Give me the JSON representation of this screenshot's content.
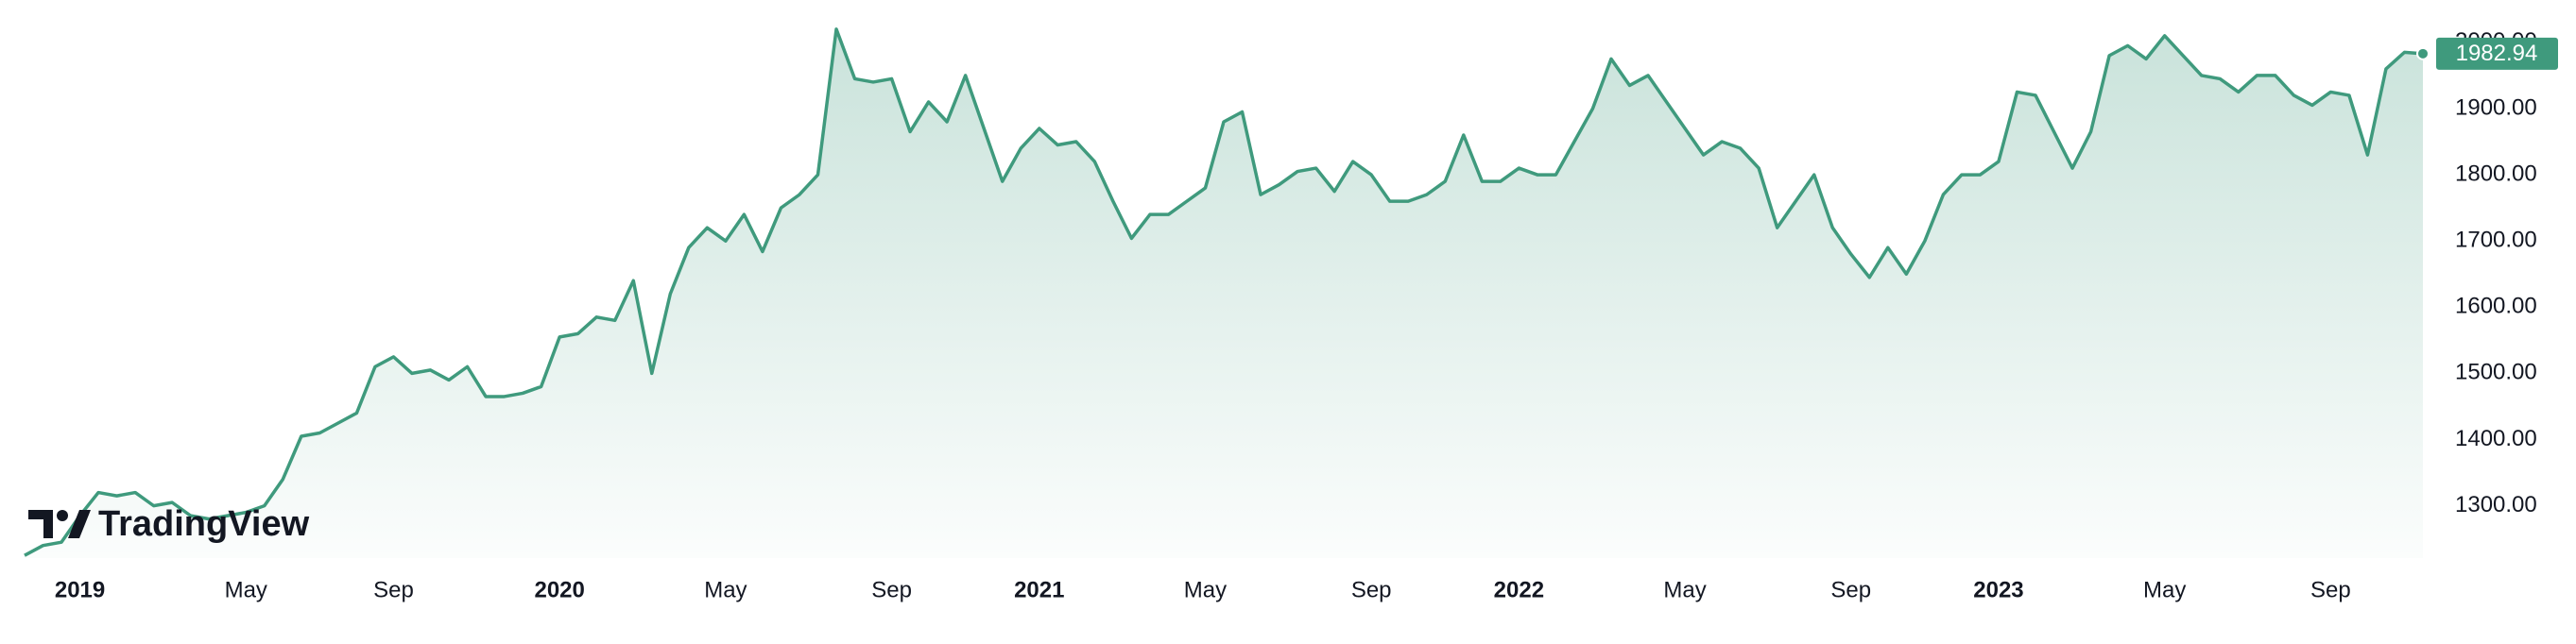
{
  "chart_data": {
    "type": "area",
    "watermark": "TradingView",
    "color": "#3f9a7d",
    "categories": [
      null,
      null,
      null,
      "2019",
      null,
      null,
      null,
      null,
      null,
      null,
      null,
      null,
      "May",
      null,
      null,
      null,
      null,
      null,
      null,
      null,
      "Sep",
      null,
      null,
      null,
      null,
      null,
      null,
      null,
      null,
      "2020",
      null,
      null,
      null,
      null,
      null,
      null,
      null,
      null,
      "May",
      null,
      null,
      null,
      null,
      null,
      null,
      null,
      null,
      "Sep",
      null,
      null,
      null,
      null,
      null,
      null,
      null,
      "2021",
      null,
      null,
      null,
      null,
      null,
      null,
      null,
      null,
      "May",
      null,
      null,
      null,
      null,
      null,
      null,
      null,
      null,
      "Sep",
      null,
      null,
      null,
      null,
      null,
      null,
      null,
      "2022",
      null,
      null,
      null,
      null,
      null,
      null,
      null,
      null,
      "May",
      null,
      null,
      null,
      null,
      null,
      null,
      null,
      null,
      "Sep",
      null,
      null,
      null,
      null,
      null,
      null,
      null,
      "2023",
      null,
      null,
      null,
      null,
      null,
      null,
      null,
      null,
      "May",
      null,
      null,
      null,
      null,
      null,
      null,
      null,
      null,
      "Sep",
      null,
      null,
      null,
      null,
      null
    ],
    "values": [
      1225,
      1240,
      1245,
      1285,
      1320,
      1315,
      1320,
      1300,
      1305,
      1285,
      1280,
      1285,
      1290,
      1300,
      1340,
      1405,
      1410,
      1425,
      1440,
      1510,
      1525,
      1500,
      1505,
      1490,
      1510,
      1465,
      1465,
      1470,
      1480,
      1555,
      1560,
      1585,
      1580,
      1640,
      1500,
      1620,
      1690,
      1720,
      1700,
      1740,
      1684,
      1750,
      1770,
      1800,
      2020,
      1945,
      1940,
      1945,
      1865,
      1910,
      1880,
      1950,
      1870,
      1790,
      1840,
      1870,
      1845,
      1850,
      1820,
      1760,
      1704,
      1740,
      1740,
      1760,
      1780,
      1880,
      1895,
      1770,
      1785,
      1805,
      1810,
      1775,
      1820,
      1800,
      1760,
      1760,
      1770,
      1790,
      1860,
      1790,
      1790,
      1810,
      1800,
      1800,
      1850,
      1900,
      1975,
      1935,
      1950,
      1910,
      1870,
      1830,
      1850,
      1840,
      1810,
      1720,
      1760,
      1800,
      1720,
      1680,
      1645,
      1690,
      1650,
      1700,
      1770,
      1800,
      1800,
      1820,
      1925,
      1920,
      1865,
      1810,
      1865,
      1980,
      1995,
      1975,
      2010,
      1980,
      1950,
      1945,
      1925,
      1950,
      1950,
      1920,
      1905,
      1925,
      1920,
      1830,
      1960,
      1985,
      1982.94
    ],
    "ylim": [
      1221,
      2064
    ],
    "yticks": [
      {
        "value": 1300,
        "label": "1300.00"
      },
      {
        "value": 1400,
        "label": "1400.00"
      },
      {
        "value": 1500,
        "label": "1500.00"
      },
      {
        "value": 1600,
        "label": "1600.00"
      },
      {
        "value": 1700,
        "label": "1700.00"
      },
      {
        "value": 1800,
        "label": "1800.00"
      },
      {
        "value": 1900,
        "label": "1900.00"
      },
      {
        "value": 2000,
        "label": "2000.00"
      }
    ]
  }
}
